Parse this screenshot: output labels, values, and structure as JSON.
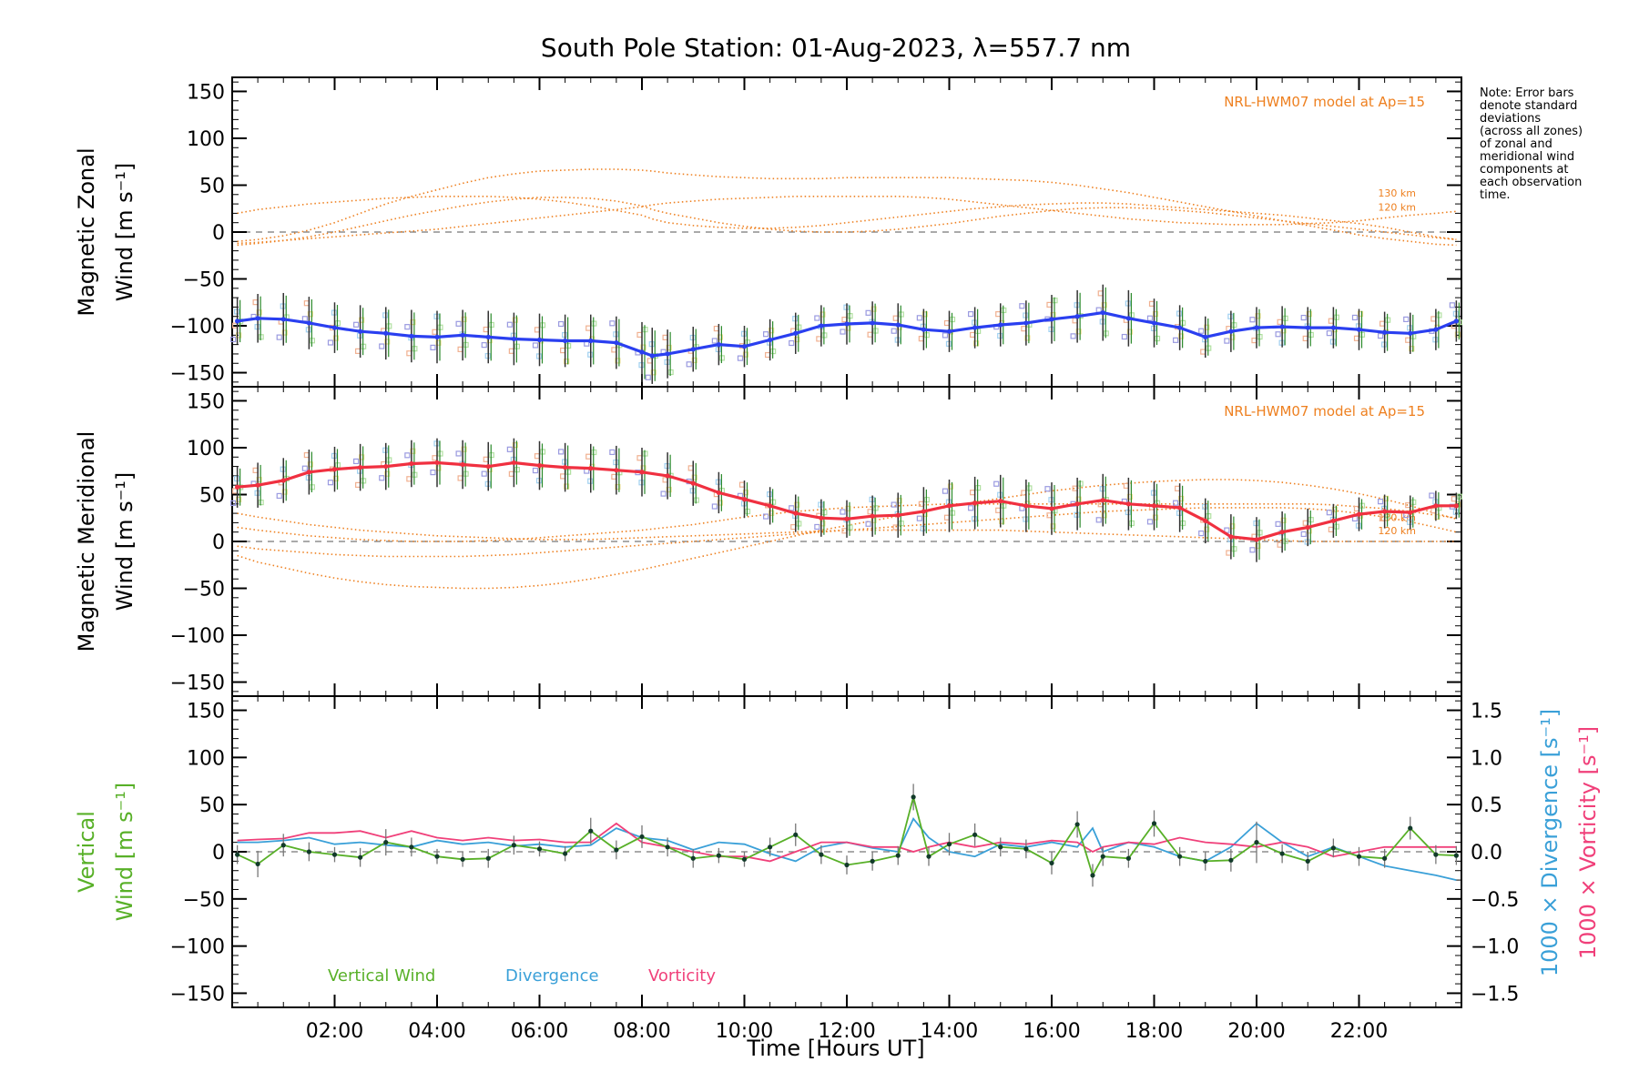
{
  "title": "South Pole Station: 01-Aug-2023, λ=557.7 nm",
  "note_lines": [
    "Note: Error bars",
    "denote standard",
    "deviations",
    "(across all zones)",
    "of zonal and",
    "meridional wind",
    "components at",
    "each observation",
    "time."
  ],
  "colors": {
    "zonal": "#2a3ff0",
    "meridional": "#f03040",
    "vertical": "#58b028",
    "divergence": "#3aa0d8",
    "vorticity": "#f0407a",
    "model": "#ee8020",
    "errorbar": "#333333",
    "zone_points": "#9a9ae0"
  },
  "chart_data": [
    {
      "type": "line",
      "panel": "zonal",
      "ylabel_line1": "Magnetic Zonal",
      "ylabel_line2": "Wind [m s⁻¹]",
      "ylim": [
        -165,
        165
      ],
      "yticks": [
        -150,
        -100,
        -50,
        0,
        50,
        100,
        150
      ],
      "model_label": "NRL-HWM07 model at Ap=15",
      "model_altitudes": [
        "130 km",
        "120 km"
      ],
      "x": [
        0.1,
        0.5,
        1.0,
        1.5,
        2.0,
        2.5,
        3.0,
        3.5,
        4.0,
        4.5,
        5.0,
        5.5,
        6.0,
        6.5,
        7.0,
        7.5,
        8.0,
        8.2,
        8.5,
        9.0,
        9.5,
        10.0,
        10.5,
        11.0,
        11.5,
        12.0,
        12.5,
        13.0,
        13.5,
        14.0,
        14.5,
        15.0,
        15.5,
        16.0,
        16.5,
        17.0,
        17.5,
        18.0,
        18.5,
        19.0,
        19.5,
        20.0,
        20.5,
        21.0,
        21.5,
        22.0,
        22.5,
        23.0,
        23.5,
        23.9
      ],
      "values": [
        -95,
        -92,
        -93,
        -97,
        -102,
        -106,
        -108,
        -111,
        -112,
        -110,
        -112,
        -114,
        -115,
        -116,
        -116,
        -118,
        -128,
        -132,
        -130,
        -125,
        -120,
        -122,
        -115,
        -108,
        -100,
        -98,
        -97,
        -99,
        -104,
        -106,
        -102,
        -99,
        -97,
        -93,
        -90,
        -86,
        -92,
        -97,
        -102,
        -112,
        -106,
        -102,
        -101,
        -102,
        -102,
        -104,
        -107,
        -108,
        -104,
        -95
      ],
      "errors": [
        25,
        26,
        28,
        28,
        27,
        28,
        28,
        28,
        28,
        27,
        28,
        28,
        28,
        28,
        28,
        28,
        32,
        30,
        26,
        24,
        22,
        22,
        22,
        22,
        22,
        22,
        23,
        23,
        22,
        22,
        22,
        23,
        24,
        26,
        28,
        30,
        30,
        26,
        24,
        22,
        22,
        22,
        22,
        22,
        22,
        22,
        22,
        22,
        22,
        22
      ],
      "model_130km": [
        20,
        24,
        27,
        30,
        32,
        34,
        36,
        37,
        38,
        38,
        38,
        37,
        35,
        32,
        28,
        23,
        18,
        14,
        10,
        7,
        5,
        4,
        4,
        5,
        7,
        10,
        13,
        16,
        19,
        22,
        25,
        27,
        29,
        30,
        31,
        31,
        30,
        28,
        26,
        24,
        22,
        20,
        18,
        15,
        12,
        9,
        5,
        0,
        -5,
        -8
      ],
      "model_120km": [
        -14,
        -12,
        -9,
        -5,
        0,
        6,
        12,
        18,
        23,
        28,
        32,
        35,
        37,
        37,
        36,
        33,
        28,
        24,
        20,
        15,
        10,
        6,
        3,
        1,
        0,
        0,
        1,
        3,
        6,
        9,
        13,
        17,
        20,
        23,
        25,
        26,
        26,
        25,
        23,
        21,
        18,
        15,
        12,
        9,
        6,
        3,
        0,
        -3,
        -6,
        -8
      ],
      "model_a": [
        -10,
        -8,
        -4,
        2,
        10,
        20,
        30,
        38,
        45,
        52,
        58,
        62,
        65,
        66,
        67,
        67,
        66,
        65,
        63,
        61,
        59,
        58,
        57,
        57,
        57,
        58,
        58,
        58,
        58,
        58,
        57,
        56,
        55,
        53,
        50,
        46,
        42,
        37,
        32,
        27,
        22,
        17,
        12,
        7,
        2,
        -3,
        -7,
        -10,
        -13,
        -14
      ],
      "model_b": [
        -12,
        -11,
        -9,
        -7,
        -5,
        -3,
        -1,
        1,
        3,
        6,
        9,
        12,
        15,
        18,
        21,
        24,
        27,
        29,
        31,
        33,
        35,
        36,
        37,
        38,
        38,
        38,
        38,
        38,
        37,
        35,
        32,
        29,
        26,
        23,
        20,
        17,
        14,
        12,
        10,
        9,
        8,
        8,
        8,
        9,
        10,
        12,
        15,
        18,
        20,
        22
      ]
    },
    {
      "type": "line",
      "panel": "meridional",
      "ylabel_line1": "Magnetic Meridional",
      "ylabel_line2": "Wind [m s⁻¹]",
      "ylim": [
        -165,
        165
      ],
      "yticks": [
        -150,
        -100,
        -50,
        0,
        50,
        100,
        150
      ],
      "model_label": "NRL-HWM07 model at Ap=15",
      "model_altitudes": [
        "130 km",
        "120 km"
      ],
      "x": [
        0.1,
        0.5,
        1.0,
        1.5,
        2.0,
        2.5,
        3.0,
        3.5,
        4.0,
        4.5,
        5.0,
        5.5,
        6.0,
        6.5,
        7.0,
        7.5,
        8.0,
        8.5,
        9.0,
        9.5,
        10.0,
        10.5,
        11.0,
        11.5,
        12.0,
        12.5,
        13.0,
        13.5,
        14.0,
        14.5,
        15.0,
        15.5,
        16.0,
        16.5,
        17.0,
        17.5,
        18.0,
        18.5,
        19.0,
        19.5,
        20.0,
        20.5,
        21.0,
        21.5,
        22.0,
        22.5,
        23.0,
        23.5,
        23.9
      ],
      "values": [
        58,
        60,
        65,
        74,
        77,
        79,
        80,
        83,
        84,
        82,
        80,
        84,
        81,
        79,
        78,
        76,
        74,
        70,
        62,
        52,
        45,
        38,
        30,
        25,
        24,
        27,
        28,
        32,
        38,
        41,
        43,
        38,
        35,
        40,
        44,
        40,
        38,
        36,
        22,
        5,
        2,
        10,
        15,
        22,
        29,
        32,
        31,
        38,
        38
      ],
      "errors": [
        22,
        24,
        24,
        24,
        24,
        25,
        25,
        25,
        26,
        26,
        26,
        26,
        26,
        26,
        26,
        26,
        26,
        25,
        24,
        22,
        20,
        20,
        20,
        20,
        20,
        22,
        24,
        26,
        28,
        28,
        28,
        28,
        28,
        28,
        28,
        28,
        26,
        26,
        24,
        24,
        24,
        22,
        20,
        18,
        18,
        18,
        18,
        16,
        14
      ],
      "model_130km": [
        15,
        12,
        9,
        6,
        4,
        2,
        1,
        0,
        0,
        0,
        1,
        2,
        4,
        6,
        8,
        10,
        12,
        15,
        18,
        22,
        26,
        29,
        32,
        34,
        36,
        37,
        38,
        39,
        40,
        40,
        40,
        40,
        40,
        40,
        40,
        40,
        40,
        40,
        40,
        40,
        40,
        40,
        40,
        39,
        37,
        35,
        32,
        28,
        25
      ],
      "model_120km": [
        -5,
        -8,
        -10,
        -12,
        -14,
        -15,
        -16,
        -16,
        -16,
        -16,
        -15,
        -14,
        -12,
        -10,
        -8,
        -6,
        -4,
        -2,
        0,
        2,
        4,
        6,
        8,
        10,
        12,
        14,
        16,
        18,
        20,
        22,
        24,
        26,
        28,
        30,
        32,
        33,
        34,
        35,
        36,
        36,
        36,
        36,
        35,
        33,
        30,
        26,
        21,
        15,
        10
      ],
      "model_a": [
        -15,
        -22,
        -28,
        -34,
        -39,
        -43,
        -46,
        -48,
        -49,
        -50,
        -50,
        -49,
        -47,
        -44,
        -40,
        -35,
        -30,
        -24,
        -18,
        -12,
        -6,
        0,
        6,
        12,
        17,
        22,
        27,
        32,
        37,
        42,
        46,
        50,
        54,
        57,
        60,
        62,
        64,
        65,
        66,
        66,
        65,
        63,
        60,
        56,
        51,
        45,
        38,
        30,
        24
      ],
      "model_b": [
        30,
        26,
        22,
        18,
        15,
        12,
        10,
        8,
        6,
        5,
        4,
        3,
        2,
        2,
        2,
        3,
        4,
        5,
        6,
        7,
        8,
        9,
        10,
        11,
        12,
        12,
        12,
        12,
        12,
        12,
        12,
        11,
        10,
        9,
        8,
        7,
        6,
        5,
        4,
        3,
        2,
        1,
        0,
        0,
        0,
        0,
        0,
        0,
        0
      ]
    },
    {
      "type": "line",
      "panel": "vertical",
      "ylabel_line1": "Vertical",
      "ylabel_line2": "Wind [m s⁻¹]",
      "ylabel_right_divergence": "1000 × Divergence [s⁻¹]",
      "ylabel_right_vorticity": "1000 × Vorticity [s⁻¹]",
      "ylim": [
        -165,
        165
      ],
      "yticks": [
        -150,
        -100,
        -50,
        0,
        50,
        100,
        150
      ],
      "y2lim": [
        -1.65,
        1.65
      ],
      "y2ticks": [
        -1.5,
        -1.0,
        -0.5,
        0.0,
        0.5,
        1.0,
        1.5
      ],
      "y2ticklabels": [
        "−1.5",
        "−1.0",
        "−0.5",
        "0.0",
        "0.5",
        "1.0",
        "1.5"
      ],
      "legend": [
        "Vertical Wind",
        "Divergence",
        "Vorticity"
      ],
      "x": [
        0.1,
        0.5,
        1.0,
        1.5,
        2.0,
        2.5,
        3.0,
        3.5,
        4.0,
        4.5,
        5.0,
        5.5,
        6.0,
        6.5,
        7.0,
        7.5,
        8.0,
        8.5,
        9.0,
        9.5,
        10.0,
        10.5,
        11.0,
        11.5,
        12.0,
        12.5,
        13.0,
        13.3,
        13.6,
        14.0,
        14.5,
        15.0,
        15.5,
        16.0,
        16.5,
        16.8,
        17.0,
        17.5,
        18.0,
        18.5,
        19.0,
        19.5,
        20.0,
        20.5,
        21.0,
        21.5,
        22.0,
        22.5,
        23.0,
        23.5,
        23.9
      ],
      "vertical_wind": [
        -3,
        -13,
        7,
        0,
        -3,
        -6,
        10,
        5,
        -5,
        -8,
        -7,
        7,
        3,
        -2,
        22,
        2,
        16,
        5,
        -7,
        -4,
        -8,
        5,
        18,
        -3,
        -14,
        -10,
        -4,
        58,
        -5,
        8,
        18,
        5,
        3,
        -12,
        29,
        -25,
        -5,
        -7,
        30,
        -5,
        -10,
        -9,
        10,
        -2,
        -10,
        4,
        -5,
        -7,
        25,
        -3,
        -4
      ],
      "vertical_errors": [
        10,
        14,
        12,
        10,
        8,
        10,
        14,
        10,
        8,
        8,
        10,
        10,
        8,
        8,
        14,
        10,
        12,
        10,
        10,
        8,
        8,
        10,
        12,
        10,
        10,
        10,
        10,
        14,
        10,
        12,
        12,
        10,
        10,
        12,
        14,
        12,
        10,
        10,
        14,
        10,
        10,
        12,
        22,
        10,
        10,
        10,
        10,
        10,
        12,
        10,
        10
      ],
      "divergence": [
        0.1,
        0.1,
        0.12,
        0.15,
        0.08,
        0.1,
        0.07,
        0.05,
        0.12,
        0.08,
        0.1,
        0.06,
        0.08,
        0.05,
        0.07,
        0.25,
        0.15,
        0.12,
        0.02,
        0.1,
        0.08,
        -0.02,
        -0.1,
        0.05,
        0.1,
        0.04,
        0.0,
        0.35,
        0.15,
        0.0,
        -0.05,
        0.08,
        0.05,
        0.1,
        0.05,
        0.25,
        0.0,
        0.1,
        0.05,
        -0.05,
        -0.1,
        0.05,
        0.3,
        0.1,
        -0.05,
        0.05,
        -0.05,
        -0.15,
        -0.2,
        -0.25,
        -0.3
      ],
      "vorticity": [
        0.12,
        0.13,
        0.14,
        0.2,
        0.2,
        0.22,
        0.15,
        0.22,
        0.15,
        0.12,
        0.15,
        0.12,
        0.13,
        0.1,
        0.1,
        0.3,
        0.1,
        0.05,
        0.0,
        -0.05,
        -0.05,
        -0.1,
        0.0,
        0.1,
        0.1,
        0.05,
        0.05,
        0.0,
        0.05,
        0.1,
        0.05,
        0.1,
        0.08,
        0.12,
        0.1,
        0.0,
        0.05,
        0.1,
        0.08,
        0.15,
        0.1,
        0.08,
        0.05,
        0.1,
        0.05,
        -0.05,
        0.0,
        0.05,
        0.05,
        0.05,
        0.05
      ]
    }
  ],
  "x_axis": {
    "label": "Time [Hours UT]",
    "xlim": [
      0,
      24
    ],
    "ticks": [
      2,
      4,
      6,
      8,
      10,
      12,
      14,
      16,
      18,
      20,
      22
    ],
    "ticklabels": [
      "02:00",
      "04:00",
      "06:00",
      "08:00",
      "10:00",
      "12:00",
      "14:00",
      "16:00",
      "18:00",
      "20:00",
      "22:00"
    ]
  }
}
